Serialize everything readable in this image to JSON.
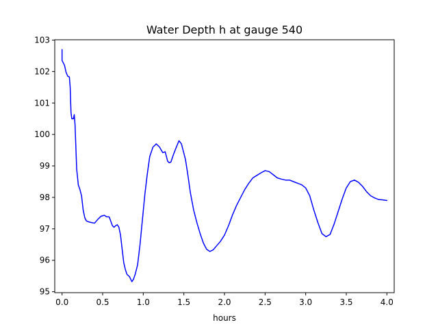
{
  "chart_data": {
    "type": "line",
    "title": "Water Depth h at gauge 540",
    "xlabel": "hours",
    "ylabel": "",
    "xlim": [
      -0.09,
      4.09
    ],
    "ylim": [
      94.97,
      103.01
    ],
    "xticks": [
      "0.0",
      "0.5",
      "1.0",
      "1.5",
      "2.0",
      "2.5",
      "3.0",
      "3.5",
      "4.0"
    ],
    "yticks": [
      "95",
      "96",
      "97",
      "98",
      "99",
      "100",
      "101",
      "102",
      "103"
    ],
    "grid": false,
    "legend": "none",
    "series": [
      {
        "color": "#0000ff",
        "x": [
          0.0,
          0.0,
          0.01,
          0.03,
          0.05,
          0.07,
          0.09,
          0.1,
          0.11,
          0.12,
          0.14,
          0.15,
          0.16,
          0.17,
          0.18,
          0.2,
          0.22,
          0.24,
          0.26,
          0.28,
          0.3,
          0.33,
          0.36,
          0.4,
          0.44,
          0.48,
          0.52,
          0.55,
          0.58,
          0.62,
          0.64,
          0.66,
          0.68,
          0.7,
          0.72,
          0.74,
          0.76,
          0.78,
          0.8,
          0.83,
          0.86,
          0.88,
          0.9,
          0.93,
          0.96,
          0.99,
          1.02,
          1.05,
          1.08,
          1.12,
          1.16,
          1.2,
          1.24,
          1.27,
          1.3,
          1.32,
          1.34,
          1.37,
          1.4,
          1.44,
          1.47,
          1.49,
          1.52,
          1.55,
          1.58,
          1.62,
          1.66,
          1.7,
          1.74,
          1.78,
          1.82,
          1.86,
          1.9,
          1.95,
          2.0,
          2.05,
          2.1,
          2.15,
          2.2,
          2.25,
          2.3,
          2.35,
          2.4,
          2.45,
          2.5,
          2.55,
          2.6,
          2.65,
          2.7,
          2.75,
          2.8,
          2.85,
          2.9,
          2.95,
          3.0,
          3.05,
          3.1,
          3.15,
          3.2,
          3.25,
          3.3,
          3.35,
          3.4,
          3.45,
          3.5,
          3.55,
          3.6,
          3.65,
          3.7,
          3.75,
          3.8,
          3.85,
          3.9,
          3.95,
          4.0
        ],
        "y": [
          102.7,
          102.35,
          102.3,
          102.2,
          101.97,
          101.85,
          101.83,
          101.5,
          100.7,
          100.5,
          100.5,
          100.63,
          100.3,
          99.6,
          98.9,
          98.4,
          98.25,
          98.05,
          97.6,
          97.35,
          97.25,
          97.22,
          97.2,
          97.18,
          97.3,
          97.4,
          97.43,
          97.38,
          97.38,
          97.1,
          97.05,
          97.1,
          97.13,
          97.05,
          96.8,
          96.35,
          95.92,
          95.7,
          95.55,
          95.48,
          95.32,
          95.4,
          95.55,
          95.85,
          96.5,
          97.3,
          98.1,
          98.75,
          99.3,
          99.6,
          99.7,
          99.6,
          99.42,
          99.45,
          99.15,
          99.1,
          99.12,
          99.35,
          99.55,
          99.8,
          99.7,
          99.5,
          99.2,
          98.7,
          98.15,
          97.6,
          97.2,
          96.85,
          96.55,
          96.35,
          96.28,
          96.33,
          96.45,
          96.6,
          96.8,
          97.1,
          97.45,
          97.75,
          98.0,
          98.25,
          98.45,
          98.62,
          98.7,
          98.78,
          98.85,
          98.82,
          98.72,
          98.62,
          98.58,
          98.55,
          98.55,
          98.5,
          98.45,
          98.4,
          98.3,
          98.05,
          97.6,
          97.2,
          96.85,
          96.75,
          96.82,
          97.15,
          97.55,
          97.95,
          98.3,
          98.5,
          98.55,
          98.48,
          98.35,
          98.18,
          98.05,
          97.98,
          97.93,
          97.92,
          97.9
        ]
      }
    ]
  }
}
